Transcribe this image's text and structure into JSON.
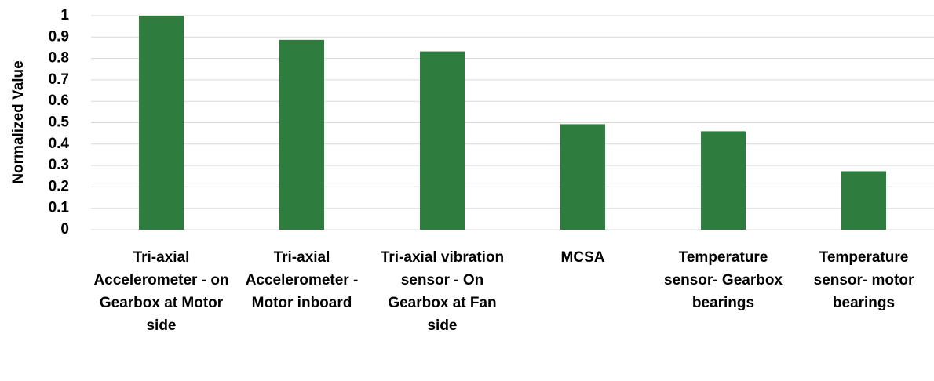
{
  "chart_data": {
    "type": "bar",
    "y_label": "Normalized Value",
    "categories": [
      "Tri-axial Accelerometer - on Gearbox at Motor side",
      "Tri-axial Accelerometer - Motor inboard",
      "Tri-axial vibration sensor - On Gearbox at Fan side",
      "MCSA",
      "Temperature sensor- Gearbox bearings",
      "Temperature sensor- motor bearings"
    ],
    "values": [
      1,
      0.887,
      0.833,
      0.493,
      0.46,
      0.273
    ],
    "color": "#2e7d3e",
    "ylim": [
      0,
      1
    ],
    "yticks": [
      0,
      0.1,
      0.2,
      0.3,
      0.4,
      0.5,
      0.6,
      0.7,
      0.8,
      0.9,
      1
    ],
    "grid": true
  }
}
